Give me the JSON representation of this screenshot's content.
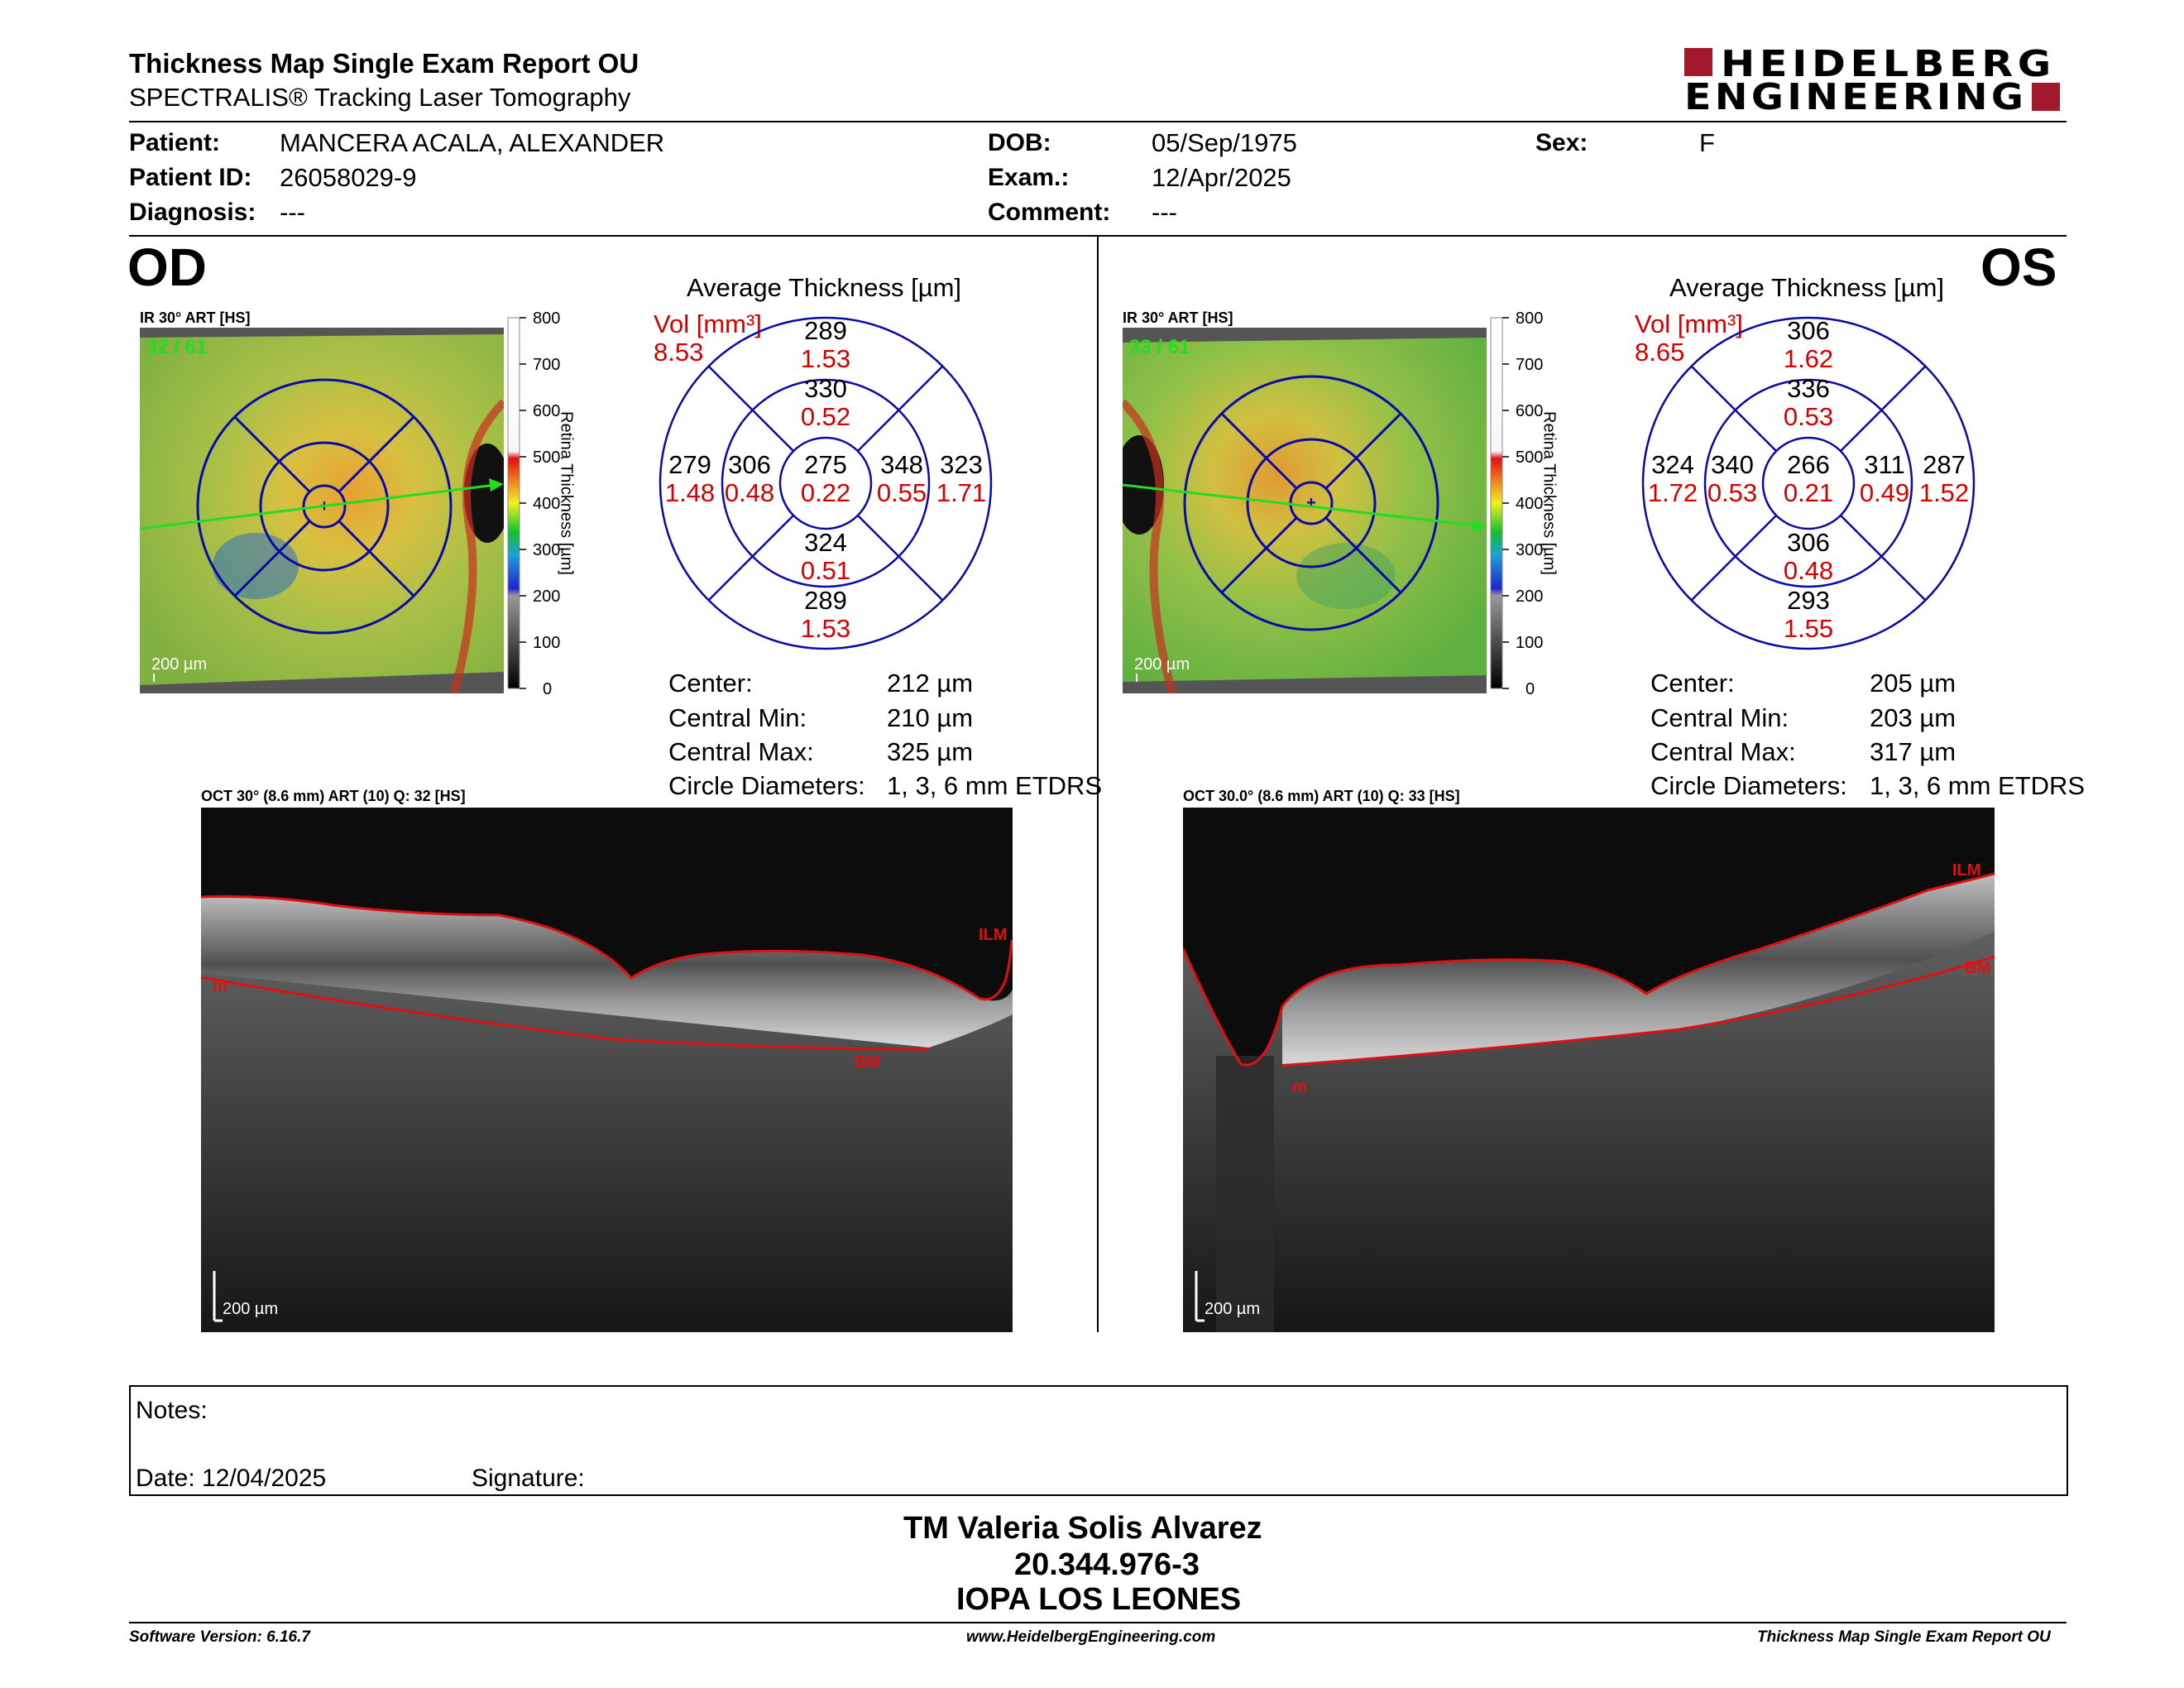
{
  "header": {
    "title": "Thickness Map Single Exam Report OU",
    "subtitle": "SPECTRALIS® Tracking Laser Tomography",
    "logo_line1": "HEIDELBERG",
    "logo_line2": "ENGINEERING"
  },
  "patient": {
    "patient_label": "Patient:",
    "patient_value": "MANCERA ACALA, ALEXANDER",
    "id_label": "Patient ID:",
    "id_value": "26058029-9",
    "diagnosis_label": "Diagnosis:",
    "diagnosis_value": "---",
    "dob_label": "DOB:",
    "dob_value": "05/Sep/1975",
    "exam_label": "Exam.:",
    "exam_value": "12/Apr/2025",
    "comment_label": "Comment:",
    "comment_value": "---",
    "sex_label": "Sex:",
    "sex_value": "F"
  },
  "od": {
    "eye_label": "OD",
    "ir_label": "IR 30° ART [HS]",
    "frames": "32 / 61",
    "scale_label": "200 µm",
    "avg_title": "Average Thickness [µm]",
    "vol_label": "Vol [mm³]",
    "vol_total": "8.53",
    "sectors": {
      "outer_superior": {
        "t": "289",
        "v": "1.53"
      },
      "inner_superior": {
        "t": "330",
        "v": "0.52"
      },
      "center": {
        "t": "275",
        "v": "0.22"
      },
      "outer_left": {
        "t": "279",
        "v": "1.48"
      },
      "inner_left": {
        "t": "306",
        "v": "0.48"
      },
      "inner_right": {
        "t": "348",
        "v": "0.55"
      },
      "outer_right": {
        "t": "323",
        "v": "1.71"
      },
      "inner_inferior": {
        "t": "324",
        "v": "0.51"
      },
      "outer_inferior": {
        "t": "289",
        "v": "1.53"
      }
    },
    "stats": [
      {
        "label": "Center:",
        "value": "212 µm"
      },
      {
        "label": "Central Min:",
        "value": "210 µm"
      },
      {
        "label": "Central Max:",
        "value": "325 µm"
      },
      {
        "label": "Circle Diameters:",
        "value": "1, 3, 6 mm ETDRS"
      }
    ],
    "oct_label": "OCT 30° (8.6 mm) ART (10) Q: 32 [HS]",
    "oct_scale": "200 µm",
    "ilm": "ILM",
    "bm": "BM",
    "m": "m"
  },
  "os": {
    "eye_label": "OS",
    "ir_label": "IR 30° ART [HS]",
    "frames": "33 / 61",
    "scale_label": "200 µm",
    "avg_title": "Average Thickness [µm]",
    "vol_label": "Vol [mm³]",
    "vol_total": "8.65",
    "sectors": {
      "outer_superior": {
        "t": "306",
        "v": "1.62"
      },
      "inner_superior": {
        "t": "336",
        "v": "0.53"
      },
      "center": {
        "t": "266",
        "v": "0.21"
      },
      "outer_left": {
        "t": "324",
        "v": "1.72"
      },
      "inner_left": {
        "t": "340",
        "v": "0.53"
      },
      "inner_right": {
        "t": "311",
        "v": "0.49"
      },
      "outer_right": {
        "t": "287",
        "v": "1.52"
      },
      "inner_inferior": {
        "t": "306",
        "v": "0.48"
      },
      "outer_inferior": {
        "t": "293",
        "v": "1.55"
      }
    },
    "stats": [
      {
        "label": "Center:",
        "value": "205 µm"
      },
      {
        "label": "Central Min:",
        "value": "203 µm"
      },
      {
        "label": "Central Max:",
        "value": "317 µm"
      },
      {
        "label": "Circle Diameters:",
        "value": "1, 3, 6 mm ETDRS"
      }
    ],
    "oct_label": "OCT 30.0° (8.6 mm) ART (10) Q: 33 [HS]",
    "oct_scale": "200 µm",
    "ilm": "ILM",
    "bm": "BM",
    "m": "m"
  },
  "colorbar": {
    "ticks": [
      "800",
      "700",
      "600",
      "500",
      "400",
      "300",
      "200",
      "100",
      "0"
    ],
    "label": "Retina Thickness [µm]"
  },
  "notes": {
    "notes_label": "Notes:",
    "date_label": "Date: 12/04/2025",
    "signature_label": "Signature:"
  },
  "signer": {
    "name": "TM Valeria Solis Alvarez",
    "id": "20.344.976-3",
    "org": "IOPA LOS LEONES"
  },
  "footer": {
    "software": "Software Version: 6.16.7",
    "url": "www.HeidelbergEngineering.com",
    "report": "Thickness Map Single Exam Report OU"
  },
  "colors": {
    "red_text": "#d40000",
    "etdrs_blue": "#0a0aa8",
    "logo_red": "#a3192c",
    "green_label": "#22dd22"
  }
}
